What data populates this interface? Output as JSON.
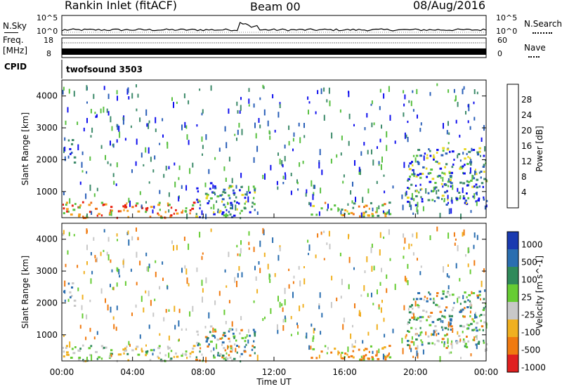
{
  "header": {
    "station": "Rankin Inlet (fitACF)",
    "beam": "Beam 00",
    "date": "08/Aug/2016"
  },
  "top_panels": {
    "nsky_label": "N.Sky",
    "nsearch_label": "N.Search",
    "noise_ticks_left": [
      "10^5",
      "10^0"
    ],
    "noise_ticks_right": [
      "10^5",
      "10^0"
    ],
    "freq_label": "Freq.",
    "freq_unit": "[MHz]",
    "freq_ticks": [
      "18",
      "8"
    ],
    "nave_label": "Nave",
    "nave_ticks": [
      "60",
      "0"
    ],
    "cpid_label": "CPID",
    "cpid_value": "twofsound 3503"
  },
  "chart_data": [
    {
      "type": "heatmap",
      "panel": "power",
      "ylabel": "Slant Range [km]",
      "y_ticks": [
        "1000",
        "2000",
        "3000",
        "4000"
      ],
      "ylim": [
        180,
        4500
      ],
      "xlim": [
        0,
        24
      ],
      "colorbar_label": "Power [dB]",
      "colorbar_ticks": [
        "4",
        "8",
        "12",
        "16",
        "20",
        "24",
        "28"
      ],
      "colorbar_colors": [
        "#1010ee",
        "#2a5fb8",
        "#3d8a6a",
        "#58c040",
        "#e8d820",
        "#f5a020",
        "#f07018",
        "#e82010"
      ],
      "scatter_regions": [
        {
          "t_start": 0.0,
          "t_end": 7.5,
          "r_start": 200,
          "r_end": 700,
          "level": "high"
        },
        {
          "t_start": 0.3,
          "t_end": 0.7,
          "r_start": 1900,
          "r_end": 2700,
          "level": "low"
        },
        {
          "t_start": 7.5,
          "t_end": 11.0,
          "r_start": 200,
          "r_end": 1300,
          "level": "mid"
        },
        {
          "t_start": 14.0,
          "t_end": 18.5,
          "r_start": 250,
          "r_end": 700,
          "level": "mid-high"
        },
        {
          "t_start": 19.5,
          "t_end": 24.0,
          "r_start": 600,
          "r_end": 2400,
          "level": "mid"
        }
      ]
    },
    {
      "type": "heatmap",
      "panel": "velocity",
      "ylabel": "Slant Range [km]",
      "xlabel": "Time UT",
      "x_ticks": [
        "00:00",
        "04:00",
        "08:00",
        "12:00",
        "16:00",
        "20:00",
        "00:00"
      ],
      "y_ticks": [
        "1000",
        "2000",
        "3000",
        "4000"
      ],
      "ylim": [
        180,
        4500
      ],
      "xlim": [
        0,
        24
      ],
      "colorbar_label": "Velocity [m s^-1]",
      "colorbar_ticks": [
        "1000",
        "500",
        "100",
        "25",
        "-25",
        "-100",
        "-500",
        "-1000"
      ],
      "colorbar_colors": [
        "#1a3ab0",
        "#2a6eb0",
        "#2f8a5a",
        "#66cc33",
        "#c8c8c8",
        "#f0b020",
        "#f07a10",
        "#e02020"
      ]
    }
  ]
}
